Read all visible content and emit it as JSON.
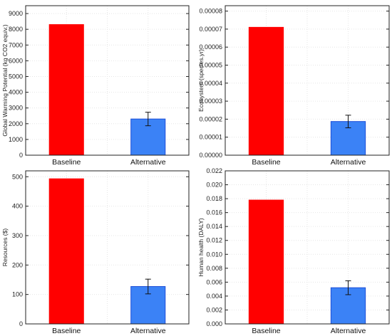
{
  "colors": {
    "baseline": "#ff0000",
    "alternative": "#3b82f6",
    "alternative_edge": "#1d4ed8",
    "grid": "#e6e6e6",
    "frame": "#222222"
  },
  "chart_data": [
    {
      "type": "bar",
      "title": "",
      "xlabel": "",
      "ylabel": "Global Warming Potential (kg CO2 equiv.)",
      "categories": [
        "Baseline",
        "Alternative"
      ],
      "values": [
        8300,
        2300
      ],
      "errors": [
        null,
        430
      ],
      "ylim": [
        0,
        9500
      ],
      "yticks": [
        "0",
        "1000",
        "2000",
        "3000",
        "4000",
        "5000",
        "6000",
        "7000",
        "8000",
        "9000"
      ],
      "ytick_values": [
        0,
        1000,
        2000,
        3000,
        4000,
        5000,
        6000,
        7000,
        8000,
        9000
      ],
      "grid": true
    },
    {
      "type": "bar",
      "title": "",
      "xlabel": "",
      "ylabel": "Ecosystem (species.yr)",
      "categories": [
        "Baseline",
        "Alternative"
      ],
      "values": [
        7.1e-05,
        1.87e-05
      ],
      "errors": [
        null,
        3.5e-06
      ],
      "ylim": [
        0,
        8.3e-05
      ],
      "yticks": [
        "0.00000",
        "0.00001",
        "0.00002",
        "0.00003",
        "0.00004",
        "0.00005",
        "0.00006",
        "0.00007",
        "0.00008"
      ],
      "ytick_values": [
        0,
        1e-05,
        2e-05,
        3e-05,
        4e-05,
        5e-05,
        6e-05,
        7e-05,
        8e-05
      ],
      "grid": true
    },
    {
      "type": "bar",
      "title": "",
      "xlabel": "",
      "ylabel": "Resources ($)",
      "categories": [
        "Baseline",
        "Alternative"
      ],
      "values": [
        493,
        127
      ],
      "errors": [
        null,
        25
      ],
      "ylim": [
        0,
        520
      ],
      "yticks": [
        "0",
        "100",
        "200",
        "300",
        "400",
        "500"
      ],
      "ytick_values": [
        0,
        100,
        200,
        300,
        400,
        500
      ],
      "grid": true
    },
    {
      "type": "bar",
      "title": "",
      "xlabel": "",
      "ylabel": "Human health (DALY)",
      "categories": [
        "Baseline",
        "Alternative"
      ],
      "values": [
        0.0178,
        0.0052
      ],
      "errors": [
        null,
        0.001
      ],
      "ylim": [
        0,
        0.022
      ],
      "yticks": [
        "0.000",
        "0.002",
        "0.004",
        "0.006",
        "0.008",
        "0.010",
        "0.012",
        "0.014",
        "0.016",
        "0.018",
        "0.020",
        "0.022"
      ],
      "ytick_values": [
        0,
        0.002,
        0.004,
        0.006,
        0.008,
        0.01,
        0.012,
        0.014,
        0.016,
        0.018,
        0.02,
        0.022
      ],
      "grid": true
    }
  ]
}
